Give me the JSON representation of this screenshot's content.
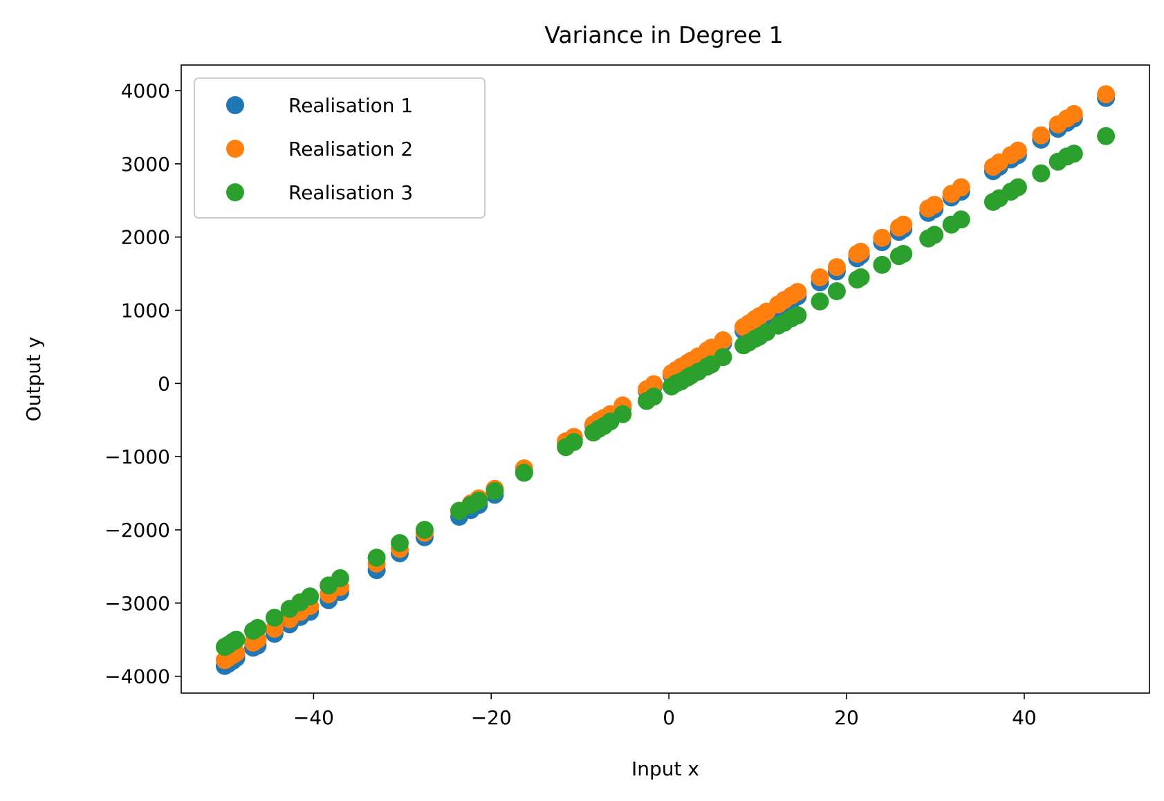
{
  "chart_data": {
    "type": "scatter",
    "title": "Variance in Degree 1",
    "xlabel": "Input x",
    "ylabel": "Output y",
    "xlim": [
      -54.9,
      54.1
    ],
    "ylim": [
      -4230,
      4350
    ],
    "xticks": [
      -40,
      -20,
      0,
      20,
      40
    ],
    "xtick_labels": [
      "−40",
      "−20",
      "0",
      "20",
      "40"
    ],
    "yticks": [
      4000,
      3000,
      2000,
      1000,
      0,
      -1000,
      -2000,
      -3000,
      -4000
    ],
    "ytick_labels": [
      "4000",
      "3000",
      "2000",
      "1000",
      "0",
      "−1000",
      "−2000",
      "−3000",
      "−4000"
    ],
    "legend_position": "upper-left",
    "x": [
      -50.0,
      -49.6,
      -49.1,
      -48.7,
      -46.8,
      -46.3,
      -44.4,
      -42.7,
      -41.5,
      -40.4,
      -38.3,
      -37.0,
      -32.9,
      -30.3,
      -27.5,
      -23.6,
      -22.3,
      -21.4,
      -19.6,
      -16.3,
      -11.6,
      -10.7,
      -8.5,
      -7.9,
      -7.3,
      -6.6,
      -5.2,
      -2.5,
      -1.7,
      0.3,
      0.8,
      1.4,
      2.1,
      2.5,
      3.3,
      4.3,
      4.8,
      6.1,
      8.4,
      9.0,
      9.7,
      10.2,
      11.0,
      12.3,
      13.0,
      13.8,
      14.5,
      17.0,
      18.9,
      21.2,
      21.6,
      24.0,
      25.9,
      26.4,
      29.2,
      29.9,
      31.8,
      32.9,
      36.5,
      37.2,
      38.5,
      39.3,
      41.9,
      43.8,
      44.8,
      45.6,
      49.2
    ],
    "series": [
      {
        "name": "Realisation 1",
        "color": "#1f77b4",
        "y": [
          -3860,
          -3830,
          -3790,
          -3750,
          -3610,
          -3580,
          -3420,
          -3290,
          -3190,
          -3120,
          -2960,
          -2850,
          -2550,
          -2320,
          -2100,
          -1820,
          -1730,
          -1660,
          -1520,
          -1210,
          -810,
          -760,
          -580,
          -540,
          -490,
          -430,
          -330,
          -100,
          -30,
          110,
          150,
          190,
          240,
          270,
          330,
          410,
          440,
          550,
          720,
          770,
          820,
          860,
          920,
          1020,
          1070,
          1130,
          1190,
          1380,
          1530,
          1710,
          1750,
          1930,
          2070,
          2110,
          2330,
          2380,
          2540,
          2620,
          2900,
          2960,
          3060,
          3120,
          3330,
          3480,
          3560,
          3620,
          3900
        ]
      },
      {
        "name": "Realisation 2",
        "color": "#ff7f0e",
        "y": [
          -3780,
          -3750,
          -3710,
          -3680,
          -3540,
          -3500,
          -3350,
          -3220,
          -3120,
          -3040,
          -2880,
          -2780,
          -2460,
          -2260,
          -2040,
          -1740,
          -1640,
          -1570,
          -1440,
          -1160,
          -790,
          -730,
          -560,
          -510,
          -470,
          -420,
          -300,
          -80,
          -10,
          140,
          180,
          230,
          280,
          310,
          370,
          450,
          490,
          590,
          770,
          820,
          880,
          920,
          980,
          1080,
          1140,
          1200,
          1250,
          1450,
          1590,
          1770,
          1800,
          1990,
          2130,
          2170,
          2390,
          2440,
          2590,
          2680,
          2960,
          3020,
          3120,
          3180,
          3390,
          3540,
          3620,
          3680,
          3950
        ]
      },
      {
        "name": "Realisation 3",
        "color": "#2ca02c",
        "y": [
          -3600,
          -3570,
          -3530,
          -3500,
          -3380,
          -3340,
          -3200,
          -3080,
          -2990,
          -2910,
          -2760,
          -2660,
          -2380,
          -2180,
          -2000,
          -1740,
          -1660,
          -1600,
          -1470,
          -1220,
          -870,
          -800,
          -670,
          -620,
          -580,
          -520,
          -420,
          -240,
          -180,
          -40,
          0,
          30,
          80,
          110,
          160,
          230,
          260,
          360,
          520,
          560,
          610,
          640,
          700,
          790,
          830,
          890,
          930,
          1120,
          1260,
          1420,
          1450,
          1620,
          1740,
          1770,
          1980,
          2030,
          2170,
          2240,
          2480,
          2530,
          2620,
          2680,
          2870,
          3030,
          3100,
          3140,
          3380
        ]
      }
    ]
  }
}
